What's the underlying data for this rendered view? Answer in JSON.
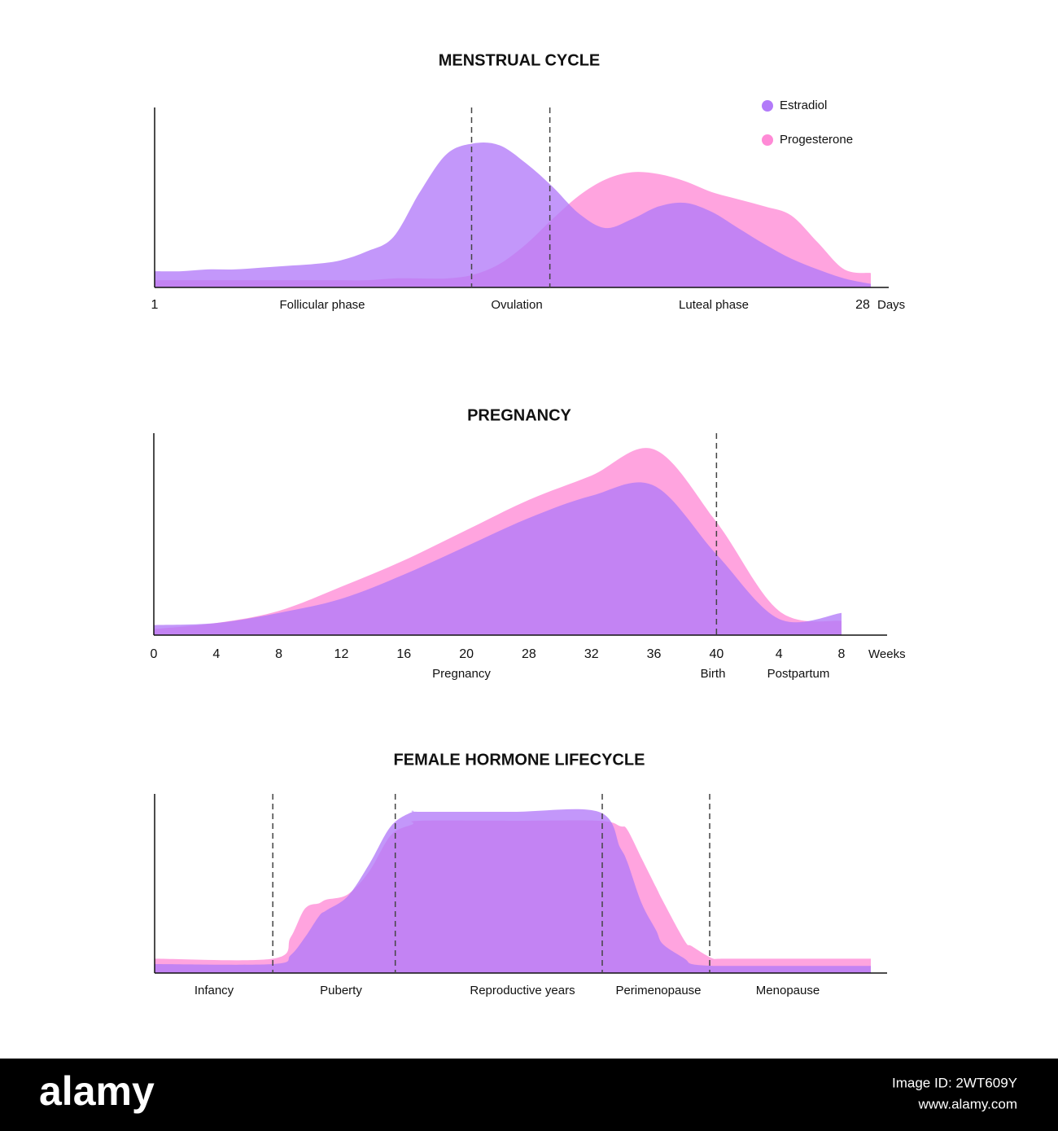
{
  "chart_data": [
    {
      "type": "area",
      "title": "MENSTRUAL CYCLE",
      "x_label": "Days",
      "x": [
        1,
        2,
        3,
        4,
        5,
        6,
        7,
        8,
        9,
        10,
        11,
        12,
        13,
        14,
        15,
        16,
        17,
        18,
        19,
        20,
        21,
        22,
        23,
        24,
        25,
        26,
        27,
        28
      ],
      "xlim": [
        1,
        28
      ],
      "xticks": [
        1,
        28
      ],
      "ylim": [
        0,
        100
      ],
      "series": [
        {
          "name": "Progesterone",
          "color": "#ff8ad6",
          "values": [
            4,
            4,
            4,
            4,
            4,
            4,
            4,
            4,
            4,
            5,
            5,
            5,
            7,
            13,
            24,
            38,
            51,
            60,
            64,
            63,
            59,
            53,
            49,
            45,
            40,
            25,
            10,
            8
          ]
        },
        {
          "name": "Estradiol",
          "color": "#b27af9",
          "values": [
            9,
            9,
            10,
            10,
            11,
            12,
            13,
            15,
            20,
            28,
            53,
            74,
            80,
            79,
            69,
            56,
            41,
            33,
            38,
            45,
            47,
            42,
            33,
            24,
            16,
            10,
            5,
            2
          ]
        }
      ],
      "dividers": [
        12.95,
        15.9
      ],
      "phases": [
        "Follicular phase",
        "Ovulation",
        "Luteal phase"
      ],
      "legend": "top-right"
    },
    {
      "type": "area",
      "title": "PREGNANCY",
      "x_label": "Weeks",
      "categories": [
        "0",
        "4",
        "8",
        "12",
        "16",
        "20",
        "28",
        "32",
        "36",
        "40",
        "4",
        "8"
      ],
      "ylim": [
        0,
        100
      ],
      "series": [
        {
          "name": "Progesterone",
          "color": "#ff8ad6",
          "values": [
            3,
            6,
            12,
            24,
            37,
            52,
            67,
            79,
            92,
            56,
            12,
            7
          ]
        },
        {
          "name": "Estradiol",
          "color": "#b27af9",
          "values": [
            5,
            6,
            11,
            18,
            30,
            44,
            58,
            69,
            74,
            40,
            8,
            11
          ]
        }
      ],
      "divider": "40",
      "annotations": [
        "Pregnancy",
        "Birth",
        "Postpartum"
      ]
    },
    {
      "type": "area",
      "title": "FEMALE HORMONE LIFECYCLE",
      "x": [
        0,
        16.5,
        19,
        21,
        23,
        24,
        27,
        30,
        33,
        36,
        37,
        50,
        62,
        65,
        66,
        68,
        70,
        71,
        74,
        75,
        78,
        80,
        100
      ],
      "xlim": [
        0,
        100
      ],
      "ylim": [
        0,
        100
      ],
      "series": [
        {
          "name": "Progesterone",
          "color": "#ff8ad6",
          "values": [
            8,
            8,
            20,
            36,
            39,
            41,
            44,
            57,
            77,
            83,
            85,
            85,
            85,
            82,
            80,
            64,
            48,
            40,
            18,
            15,
            8,
            8,
            8
          ]
        },
        {
          "name": "Estradiol",
          "color": "#b27af9",
          "values": [
            5,
            5,
            10,
            20,
            32,
            35,
            43,
            61,
            82,
            90,
            90,
            90,
            90,
            70,
            62,
            39,
            24,
            16,
            8,
            5,
            4,
            4,
            4
          ]
        }
      ],
      "dividers": [
        16.5,
        33.6,
        62.5,
        77.5
      ],
      "phases": [
        "Infancy",
        "Puberty",
        "Reproductive years",
        "Perimenopause",
        "Menopause"
      ]
    }
  ],
  "watermark": {
    "brand": "alamy",
    "image_id": "Image ID: 2WT609Y",
    "url": "www.alamy.com"
  }
}
